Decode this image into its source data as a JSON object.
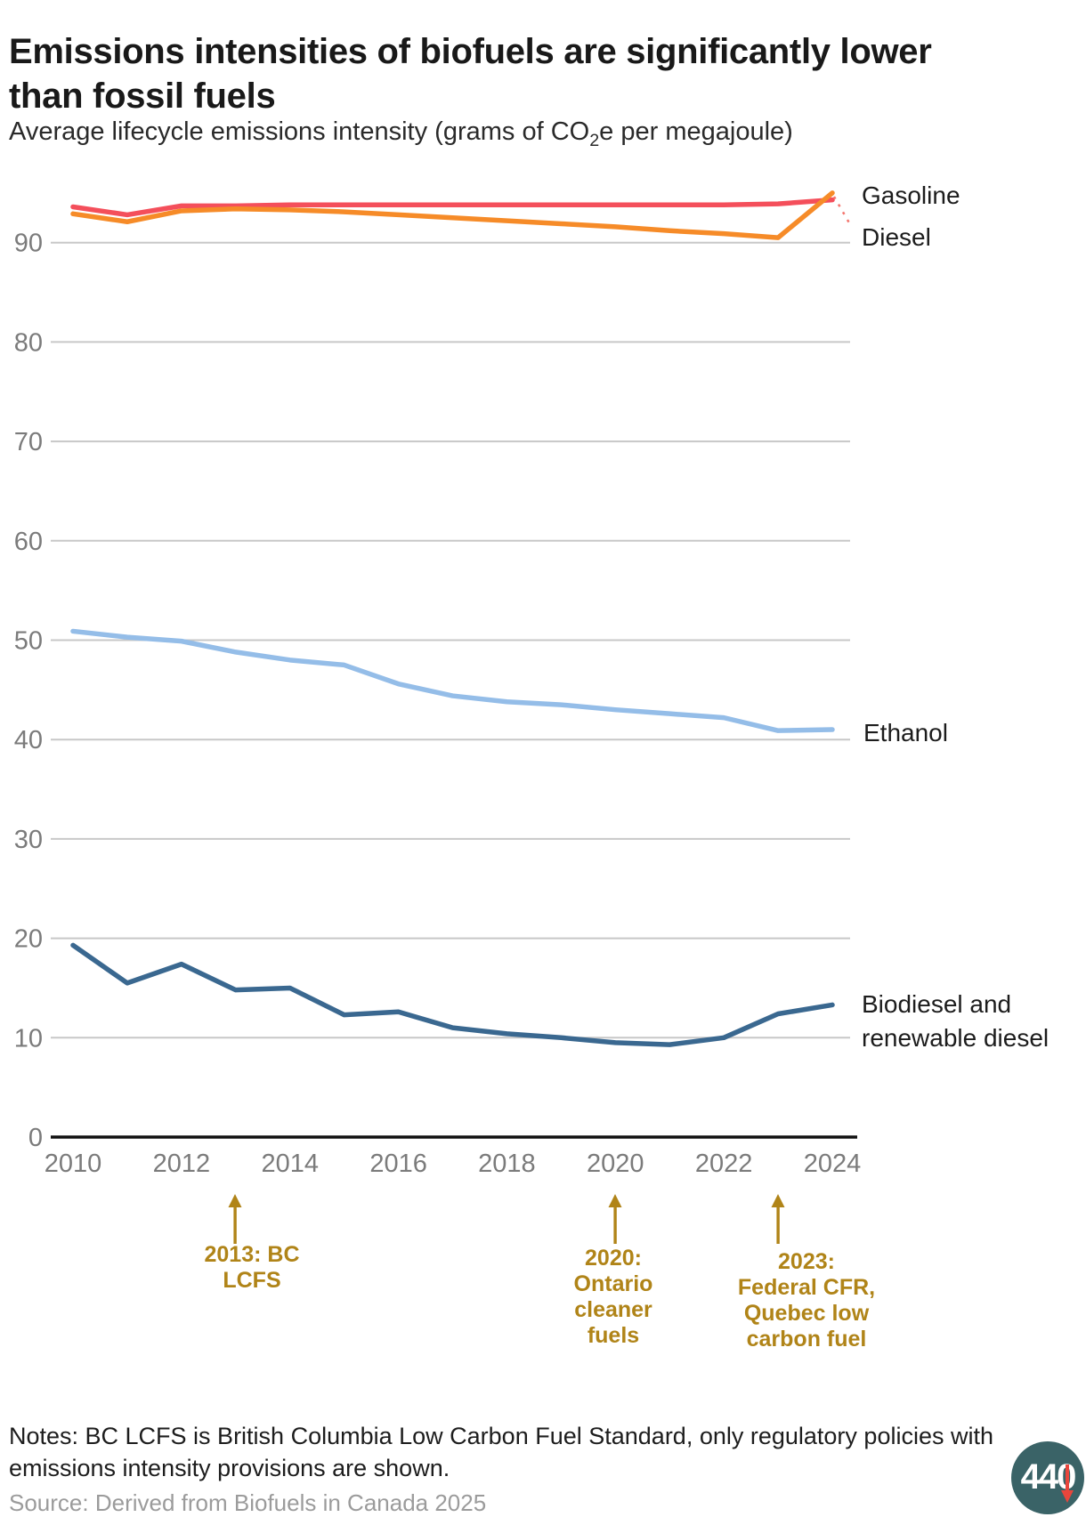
{
  "header": {
    "title": "Emissions intensities of biofuels are significantly lower than fossil fuels",
    "subtitle_pre": "Average lifecycle emissions intensity (grams of CO",
    "subtitle_sub": "2",
    "subtitle_post": "e per megajoule)"
  },
  "chart_data": {
    "type": "line",
    "x": [
      2010,
      2011,
      2012,
      2013,
      2014,
      2015,
      2016,
      2017,
      2018,
      2019,
      2020,
      2021,
      2022,
      2023,
      2024
    ],
    "x_tick_labels": [
      "2010",
      "2012",
      "2014",
      "2016",
      "2018",
      "2020",
      "2022",
      "2024"
    ],
    "y_ticks": [
      0,
      10,
      20,
      30,
      40,
      50,
      60,
      70,
      80,
      90
    ],
    "xlim": [
      2010,
      2024
    ],
    "ylim": [
      0,
      97
    ],
    "grid": true,
    "legend_position": "right-inline",
    "series": [
      {
        "name": "Gasoline",
        "color": "#f44f5b",
        "values": [
          93.6,
          92.8,
          93.7,
          93.7,
          93.8,
          93.8,
          93.8,
          93.8,
          93.8,
          93.8,
          93.8,
          93.8,
          93.8,
          93.9,
          94.3
        ]
      },
      {
        "name": "Diesel",
        "color": "#f68b28",
        "values": [
          92.9,
          92.1,
          93.2,
          93.4,
          93.3,
          93.1,
          92.8,
          92.5,
          92.2,
          91.9,
          91.6,
          91.2,
          90.9,
          90.5,
          95.0
        ]
      },
      {
        "name": "Ethanol",
        "color": "#94bde8",
        "values": [
          50.9,
          50.3,
          49.9,
          48.8,
          48.0,
          47.5,
          45.6,
          44.4,
          43.8,
          43.5,
          43.0,
          42.6,
          42.2,
          40.9,
          41.0
        ]
      },
      {
        "name": "Biodiesel and renewable diesel",
        "label_lines": [
          "Biodiesel and",
          "renewable diesel"
        ],
        "color": "#3a6890",
        "values": [
          19.3,
          15.5,
          17.4,
          14.8,
          15.0,
          12.3,
          12.6,
          11.0,
          10.4,
          10.0,
          9.5,
          9.3,
          10.0,
          12.4,
          13.3
        ]
      }
    ],
    "annotations": [
      {
        "year": 2013,
        "lines": [
          "2013: BC",
          "LCFS"
        ]
      },
      {
        "year": 2020,
        "lines": [
          "2020:",
          "Ontario",
          "cleaner",
          "fuels"
        ]
      },
      {
        "year": 2023,
        "lines": [
          "2023:",
          "Federal CFR,",
          "Quebec low",
          "carbon fuel"
        ]
      }
    ],
    "annotation_color": "#b08418",
    "grid_color": "#c8c8c8",
    "axis_color": "#111111",
    "tick_label_color": "#7b7b7b"
  },
  "footer": {
    "notes": "Notes: BC LCFS is British Columbia Low Carbon Fuel Standard, only regulatory policies with emissions intensity provisions are shown.",
    "source": "Source: Derived from Biofuels in Canada 2025",
    "logo_text": "44",
    "logo_zero": "0"
  }
}
